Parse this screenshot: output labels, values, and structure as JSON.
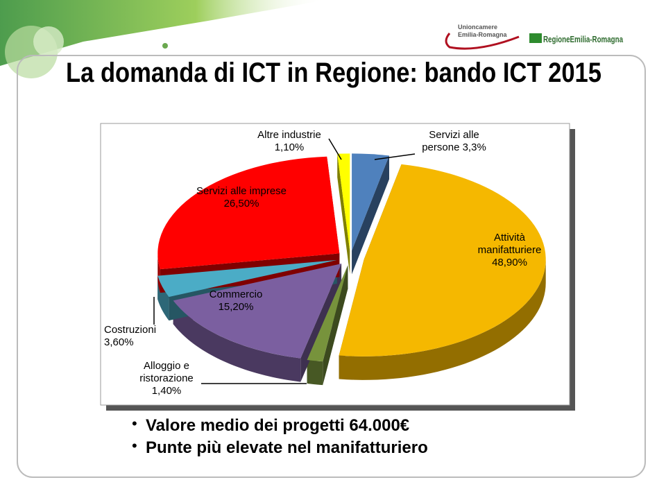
{
  "logos": {
    "unioncamere": [
      "Unioncamere",
      "Emilia-Romagna"
    ],
    "regione": "RegioneEmilia-Romagna"
  },
  "chart_data": {
    "type": "pie",
    "title": "La domanda di ICT in Regione: bando ICT 2015",
    "categories": [
      "Servizi alle persone",
      "Attività manifatturiere",
      "Alloggio e ristorazione",
      "Commercio",
      "Costruzioni",
      "Servizi alle imprese",
      "Altre industrie"
    ],
    "values": [
      3.3,
      48.9,
      1.4,
      15.2,
      3.6,
      26.5,
      1.1
    ],
    "value_labels": [
      "3,3%",
      "48,90%",
      "1,40%",
      "15,20%",
      "3,60%",
      "26,50%",
      "1,10%"
    ],
    "colors": [
      "#4f81bd",
      "#f5b800",
      "#77933c",
      "#7b5fa0",
      "#4bacc6",
      "#ff0000",
      "#ffff00"
    ]
  },
  "bullets": [
    "Valore medio dei progetti 64.000€",
    "Punte più elevate nel manifatturiero"
  ]
}
